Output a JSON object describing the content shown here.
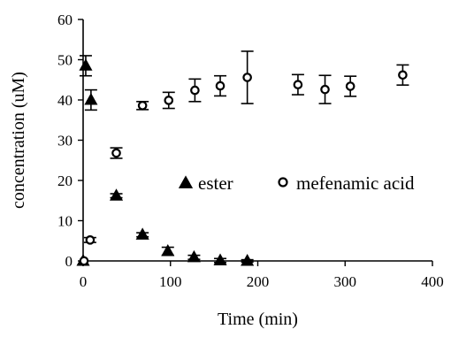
{
  "chart_data": {
    "type": "scatter",
    "xlabel": "Time (min)",
    "ylabel": "concentration (uM)",
    "xlim": [
      0,
      400
    ],
    "ylim": [
      0,
      60
    ],
    "x_ticks": [
      0,
      100,
      200,
      300,
      400
    ],
    "y_ticks": [
      0,
      10,
      20,
      30,
      40,
      50,
      60
    ],
    "grid": false,
    "legend_position": "right",
    "series": [
      {
        "name": "ester",
        "marker": "filled-triangle",
        "color": "#000000",
        "points": [
          {
            "x": 0,
            "y": 0,
            "err": 0
          },
          {
            "x": 3,
            "y": 48.5,
            "err": 2.5
          },
          {
            "x": 9,
            "y": 40,
            "err": 2.5
          },
          {
            "x": 38,
            "y": 16.2,
            "err": 0.5
          },
          {
            "x": 68,
            "y": 6.5,
            "err": 0.5
          },
          {
            "x": 97,
            "y": 2.4,
            "err": 1.0
          },
          {
            "x": 127,
            "y": 0.9,
            "err": 0.5
          },
          {
            "x": 157,
            "y": 0.1,
            "err": 0.5
          },
          {
            "x": 188,
            "y": 0,
            "err": 0.3
          }
        ]
      },
      {
        "name": "mefenamic acid",
        "marker": "open-circle",
        "color": "#000000",
        "points": [
          {
            "x": 1,
            "y": 0,
            "err": 0
          },
          {
            "x": 8,
            "y": 5.2,
            "err": 0.6
          },
          {
            "x": 38,
            "y": 26.8,
            "err": 1.3
          },
          {
            "x": 68,
            "y": 38.6,
            "err": 1.0
          },
          {
            "x": 98,
            "y": 39.9,
            "err": 2.0
          },
          {
            "x": 128,
            "y": 42.4,
            "err": 2.8
          },
          {
            "x": 157,
            "y": 43.5,
            "err": 2.5
          },
          {
            "x": 188,
            "y": 45.6,
            "err": 6.5
          },
          {
            "x": 246,
            "y": 43.8,
            "err": 2.5
          },
          {
            "x": 277,
            "y": 42.6,
            "err": 3.5
          },
          {
            "x": 306,
            "y": 43.4,
            "err": 2.5
          },
          {
            "x": 366,
            "y": 46.2,
            "err": 2.5
          }
        ]
      }
    ]
  }
}
